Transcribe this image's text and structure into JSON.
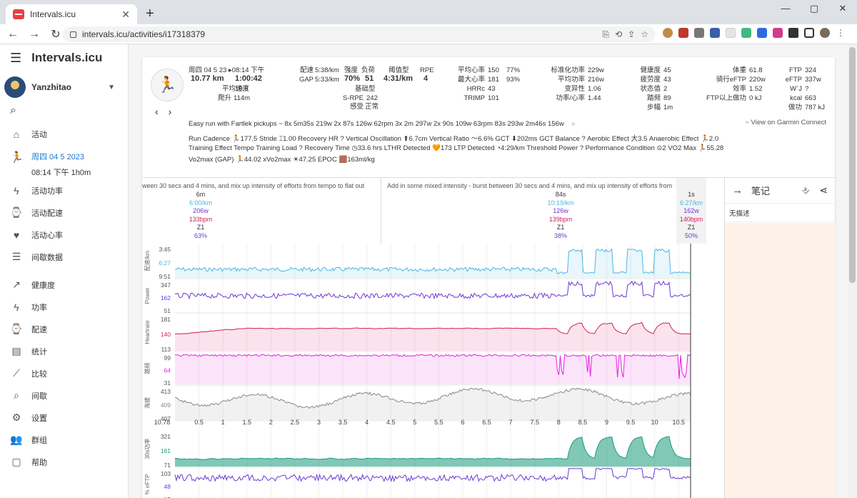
{
  "browser": {
    "tab_title": "Intervals.icu",
    "url": "intervals.icu/activities/i17318379",
    "new_tab": "+",
    "win_controls": [
      "—",
      "▢",
      "✕"
    ],
    "tab_close": "✕"
  },
  "app": {
    "title": "Intervals.icu",
    "user": "Yanzhitao",
    "sidebar": {
      "activities": "活动",
      "current_activity_date": "周四 04 5 2023",
      "current_activity_time": "08:14 下午  1h0m",
      "activity_power": "活动功率",
      "activity_pace": "活动配速",
      "activity_hr": "活动心率",
      "intervals_data": "间歇数据",
      "fitness": "健康度",
      "power": "功率",
      "pace": "配速",
      "stats": "统计",
      "compare": "比较",
      "intervals": "间歇",
      "settings": "设置",
      "groups": "群组",
      "more": "帮助"
    }
  },
  "activity": {
    "datetime": "周四 04 5 23 ▸08:14 下午",
    "distance": "10.77 km",
    "duration": "1:00:42",
    "avg_speed_label": "平均速度",
    "avg_speed": "10.6",
    "climb_label": "爬升",
    "climb": "114m",
    "pace_label": "配速",
    "pace": "5:38/km",
    "gap_label": "GAP",
    "gap": "5:33/km",
    "intensity_label": "强度",
    "intensity": "70%",
    "load_label": "负荷",
    "load": "51",
    "threshold_label": "阈值型",
    "threshold": "4:31/km",
    "rpe_label": "RPE",
    "rpe": "4",
    "base_label": "基础型",
    "srpe_label": "S-RPE",
    "srpe": "242",
    "feel_label": "感受",
    "feel": "正常",
    "avg_hr_label": "平均心率",
    "avg_hr": "150",
    "avg_hr_pct": "77%",
    "max_hr_label": "最大心率",
    "max_hr": "181",
    "max_hr_pct": "93%",
    "hrrc_label": "HRRc",
    "hrrc": "43",
    "trimp_label": "TRIMP",
    "trimp": "101",
    "norm_power_label": "标准化功率",
    "norm_power": "229w",
    "avg_power_label": "平均功率",
    "avg_power": "216w",
    "variability_label": "变异性",
    "variability": "1.06",
    "power_hr_label": "功率/心率",
    "power_hr": "1.44",
    "fitness_label": "健康度",
    "fitness": "45",
    "fatigue_label": "疲劳度",
    "fatigue": "43",
    "form_label": "状态值",
    "form": "2",
    "cadence_label": "踏频",
    "cadence": "89",
    "stride_label": "步幅",
    "stride": "1m",
    "weight_label": "体重",
    "weight": "61.8",
    "ride_eftp_label": "骑行eFTP",
    "ride_eftp": "220w",
    "efficiency_label": "效率",
    "efficiency": "1.52",
    "above_ftp_label": "FTP以上做功",
    "above_ftp": "0 kJ",
    "ftp_label": "FTP",
    "ftp": "324",
    "eftp_label": "eFTP",
    "eftp": "337w",
    "wj_label": "W`J",
    "wj": "?",
    "kcal_label": "kcal",
    "kcal": "663",
    "work_label": "做功",
    "work": "787 kJ",
    "description": "Easy run with Fartlek pickups",
    "workout_summary": "~ 8x 5m35s 219w  2x 87s 126w 62rpm  3x 2m 297w  2x 90s 109w 63rpm  83s 293w  2m46s 156w",
    "garmin_link": "~ View on Garmin Connect",
    "metrics_row1": "Run Cadence 🏃177.5  Stride ⌶1.00  Recovery HR ?  Vertical Oscillation ⬆6.7cm  Vertical Ratio 〜6.6%  GCT ⬇202ms  GCT Balance ?  Aerobic Effect 大3.5  Anaerobic Effect 🏃2.0",
    "metrics_row2": "Training Effect Tempo  Training Load ?  Recovery Time ◷33.6 hrs  LTHR Detected 🧡173  LTP Detected ◔4:29/km  Threshold Power ?  Performance Condition ⊝2  VO2 Max 🏃55.28",
    "metrics_row3": "Vo2max (GAP) 🏃44.02  xVo2max ☀47.25  EPOC 🟫163ml/kg"
  },
  "intervals": {
    "desc_left": "ween 30 secs and 4 mins, and mix up intensity of efforts from tempo to flat out",
    "desc_right": "Add in some mixed intensity - burst between 30 secs and 4 mins, and mix up intensity of efforts from tempo to flat",
    "col1": [
      "6m",
      "6:00/km",
      "206w",
      "133bpm",
      "Z1",
      "63%"
    ],
    "col2": [
      "84s",
      "10:19/km",
      "126w",
      "139bpm",
      "Z1",
      "38%"
    ],
    "col3": [
      "1s",
      "6:27/km",
      "162w",
      "140bpm",
      "Z1",
      "50%"
    ]
  },
  "plots": {
    "pace": {
      "label": "配速/km",
      "ticks": [
        "3:45",
        "6:27",
        "9:51"
      ],
      "color": "#4db6e0"
    },
    "power": {
      "label": "Power",
      "ticks": [
        "347",
        "162",
        "51"
      ],
      "color": "#6a3ad6"
    },
    "hr": {
      "label": "Heartrate",
      "ticks": [
        "181",
        "140",
        "113"
      ],
      "color": "#d81b60"
    },
    "cadence": {
      "label": "踏频",
      "ticks": [
        "99",
        "64",
        "31"
      ],
      "color": "#e91ee0"
    },
    "alt": {
      "label": "海拔",
      "ticks": [
        "413",
        "409",
        "407"
      ],
      "color": "#888888"
    },
    "power30": {
      "label": "30s功率",
      "ticks": [
        "321",
        "161",
        "71"
      ],
      "color": "#1a9a7a"
    },
    "eftp": {
      "label": "% eFTP",
      "ticks": [
        "103",
        "48",
        "15"
      ],
      "color": "#6a3ad6"
    },
    "xaxis": [
      "10.78",
      "0.5",
      "1",
      "1.5",
      "2",
      "2.5",
      "3",
      "3.5",
      "4",
      "4.5",
      "5",
      "5.5",
      "6",
      "6.5",
      "7",
      "7.5",
      "8",
      "8.5",
      "9",
      "9.5",
      "10",
      "10.5"
    ]
  },
  "notes": {
    "title": "笔记",
    "no_description": "无描述"
  }
}
